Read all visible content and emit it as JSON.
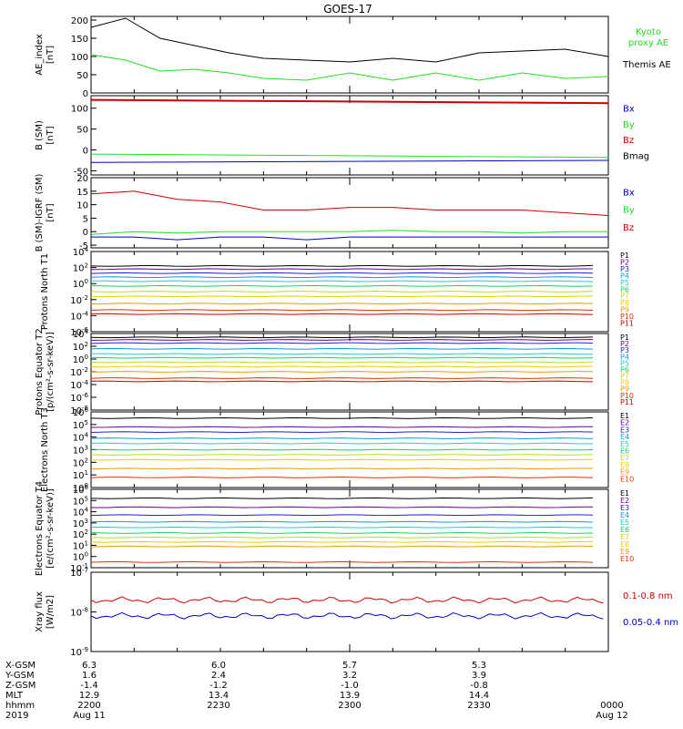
{
  "title": "GOES-17",
  "colors": {
    "black": "#000000",
    "green": "#22dd22",
    "blue": "#0000cc",
    "red": "#cc0000",
    "p": [
      "#000000",
      "#660099",
      "#2222cc",
      "#1199dd",
      "#22cccc",
      "#22cc66",
      "#bbdd22",
      "#eecc00",
      "#ee9900",
      "#dd3300",
      "#cc0000"
    ]
  },
  "x_axis": {
    "ticks": [
      "2200",
      "2230",
      "2300",
      "2330",
      "0000"
    ],
    "rows": [
      {
        "label": "X-GSM",
        "values": [
          "6.3",
          "6.0",
          "5.7",
          "5.3",
          ""
        ]
      },
      {
        "label": "Y-GSM",
        "values": [
          "1.6",
          "2.4",
          "3.2",
          "3.9",
          ""
        ]
      },
      {
        "label": "Z-GSM",
        "values": [
          "-1.4",
          "-1.2",
          "-1.0",
          "-0.8",
          ""
        ]
      },
      {
        "label": "MLT",
        "values": [
          "12.9",
          "13.4",
          "13.9",
          "14.4",
          ""
        ]
      },
      {
        "label": "hhmm",
        "values": [
          "2200",
          "2230",
          "2300",
          "2330",
          "0000"
        ]
      },
      {
        "label": "2019",
        "values": [
          "Aug 11",
          "",
          "",
          "",
          "Aug 12"
        ]
      }
    ]
  },
  "chart_data": [
    {
      "type": "line",
      "ylabel": "AE_index [nT]",
      "yticks": [
        "200",
        "150",
        "100",
        "50",
        "0"
      ],
      "ylim": [
        0,
        210
      ],
      "legend": [
        {
          "text": "Kyoto proxy AE",
          "color": "#22dd22"
        },
        {
          "text": "Themis AE",
          "color": "#000000"
        }
      ],
      "x": [
        0,
        4,
        8,
        12,
        16,
        20,
        25,
        30,
        35,
        40,
        45,
        50,
        55,
        60
      ],
      "series": [
        {
          "name": "Themis AE",
          "values": [
            180,
            205,
            150,
            130,
            110,
            95,
            90,
            85,
            95,
            85,
            110,
            115,
            120,
            100
          ]
        },
        {
          "name": "Kyoto proxy AE",
          "values": [
            105,
            90,
            60,
            65,
            55,
            40,
            35,
            55,
            35,
            55,
            35,
            55,
            40,
            45
          ]
        }
      ]
    },
    {
      "type": "line",
      "ylabel": "B (SM) [nT]",
      "yticks": [
        "100",
        "50",
        "0",
        "-50"
      ],
      "ylim": [
        -60,
        130
      ],
      "legend": [
        {
          "text": "Bx",
          "color": "#0000cc"
        },
        {
          "text": "By",
          "color": "#22dd22"
        },
        {
          "text": "Bz",
          "color": "#cc0000"
        },
        {
          "text": "Bmag",
          "color": "#000000"
        }
      ],
      "x": [
        0,
        60
      ],
      "series": [
        {
          "name": "Bz",
          "values": [
            120,
            112
          ]
        },
        {
          "name": "By",
          "values": [
            -10,
            -18
          ]
        },
        {
          "name": "Bx",
          "values": [
            -30,
            -25
          ]
        }
      ]
    },
    {
      "type": "line",
      "ylabel": "B (SM)-IGRF (SM) [nT]",
      "yticks": [
        "20",
        "15",
        "10",
        "5",
        "0",
        "-5"
      ],
      "ylim": [
        -6,
        20
      ],
      "legend": [
        {
          "text": "Bx",
          "color": "#0000cc"
        },
        {
          "text": "By",
          "color": "#22dd22"
        },
        {
          "text": "Bz",
          "color": "#cc0000"
        }
      ],
      "x": [
        0,
        5,
        10,
        15,
        20,
        25,
        30,
        35,
        40,
        45,
        50,
        55,
        60
      ],
      "series": [
        {
          "name": "Bz",
          "values": [
            14,
            15,
            12,
            11,
            8,
            8,
            9,
            9,
            8,
            8,
            8,
            7,
            6
          ]
        },
        {
          "name": "By",
          "values": [
            -1,
            0,
            -0.5,
            0,
            0,
            0,
            0,
            0.5,
            0,
            0,
            -0.5,
            0,
            0
          ]
        },
        {
          "name": "Bx",
          "values": [
            -2,
            -2,
            -3,
            -2,
            -2,
            -3,
            -2,
            -2,
            -2,
            -2,
            -2,
            -2,
            -2
          ]
        }
      ]
    },
    {
      "type": "line",
      "ylabel": "Protons North T1",
      "yticks": [
        "10^4",
        "10^2",
        "10^0",
        "10^-2",
        "10^-4",
        "10^-6"
      ],
      "ylim": [
        -6,
        4
      ],
      "legend_labels": [
        "P1",
        "P2",
        "P3",
        "P4",
        "P5",
        "P6",
        "P7",
        "P8",
        "P9",
        "P10",
        "P11"
      ],
      "levels": [
        2.2,
        1.8,
        1.3,
        0.8,
        0.3,
        -0.3,
        -1.0,
        -1.6,
        -2.5,
        -3.3,
        -3.8
      ]
    },
    {
      "type": "line",
      "ylabel": "Protons Equator T2 [p/(cm²-s-sr-keV)]",
      "yticks": [
        "10^4",
        "10^2",
        "10^0",
        "10^-2",
        "10^-4",
        "10^-6",
        "10^-8"
      ],
      "ylim": [
        -8,
        4
      ],
      "legend_labels": [
        "P1",
        "P2",
        "P3",
        "P4",
        "P5",
        "P6",
        "P7",
        "P8",
        "P9",
        "P10",
        "P11"
      ],
      "levels": [
        3.4,
        3.0,
        2.5,
        1.6,
        0.8,
        0.2,
        -0.5,
        -1.2,
        -2.0,
        -3.0,
        -3.5
      ]
    },
    {
      "type": "line",
      "ylabel": "Electrons North T3",
      "yticks": [
        "10^6",
        "10^5",
        "10^4",
        "10^3",
        "10^2",
        "10^1",
        "10^0"
      ],
      "ylim": [
        0,
        6
      ],
      "legend_labels": [
        "E1",
        "E2",
        "E3",
        "E4",
        "E5",
        "E6",
        "E7",
        "E8",
        "E9",
        "E10"
      ],
      "levels": [
        5.5,
        4.8,
        4.4,
        3.9,
        3.5,
        3.0,
        2.6,
        2.2,
        1.5,
        0.8
      ]
    },
    {
      "type": "line",
      "ylabel": "Electrons Equator T4 [e/(cm²-s-sr-keV)]",
      "yticks": [
        "10^6",
        "10^5",
        "10^4",
        "10^3",
        "10^2",
        "10^1",
        "10^0",
        "10^-1"
      ],
      "ylim": [
        -1,
        6
      ],
      "legend_labels": [
        "E1",
        "E2",
        "E3",
        "E4",
        "E5",
        "E6",
        "E7",
        "E8",
        "E9",
        "E10"
      ],
      "levels": [
        5.2,
        4.4,
        3.7,
        3.1,
        2.6,
        2.1,
        1.7,
        1.3,
        0.9,
        -0.5
      ]
    },
    {
      "type": "line",
      "ylabel": "Xray flux [W/m2]",
      "yticks": [
        "10^-7",
        "10^-8",
        "10^-9"
      ],
      "ylim": [
        -9,
        -7
      ],
      "legend": [
        {
          "text": "0.1-0.8 nm",
          "color": "#cc0000"
        },
        {
          "text": "0.05-0.4 nm",
          "color": "#0000cc"
        }
      ],
      "series": [
        {
          "name": "0.1-0.8 nm",
          "level": -7.7
        },
        {
          "name": "0.05-0.4 nm",
          "level": -8.1
        }
      ]
    }
  ]
}
